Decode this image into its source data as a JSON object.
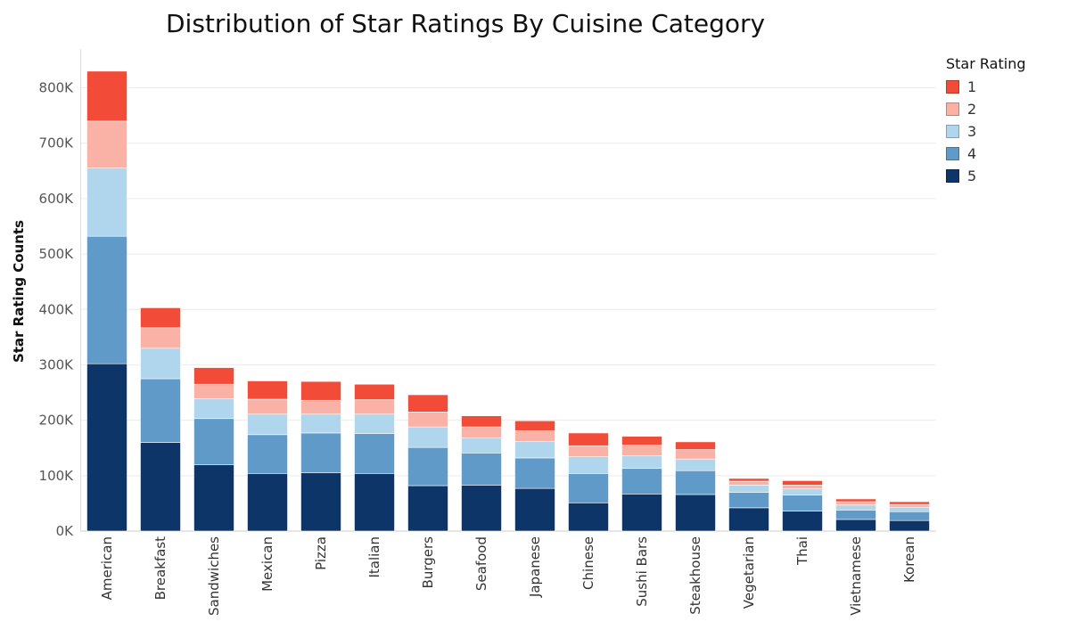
{
  "chart_data": {
    "type": "bar",
    "stacked": true,
    "title": "Distribution of Star Ratings By Cuisine Category",
    "xlabel": "",
    "ylabel": "Star Rating Counts",
    "ylim": [
      0,
      870000
    ],
    "yticks": [
      0,
      100000,
      200000,
      300000,
      400000,
      500000,
      600000,
      700000,
      800000
    ],
    "ytick_labels": [
      "0K",
      "100K",
      "200K",
      "300K",
      "400K",
      "500K",
      "600K",
      "700K",
      "800K"
    ],
    "grid": true,
    "legend_title": "Star Rating",
    "legend_position": "right",
    "categories": [
      "American",
      "Breakfast",
      "Sandwiches",
      "Mexican",
      "Pizza",
      "Italian",
      "Burgers",
      "Seafood",
      "Japanese",
      "Chinese",
      "Sushi Bars",
      "Steakhouse",
      "Vegetarian",
      "Thai",
      "Vietnamese",
      "Korean"
    ],
    "series": [
      {
        "name": "5",
        "color": "#0e3567",
        "values": [
          302000,
          160000,
          120000,
          104000,
          105000,
          104000,
          82000,
          83000,
          77000,
          51000,
          67000,
          66000,
          42000,
          36000,
          21000,
          19000
        ]
      },
      {
        "name": "4",
        "color": "#5f9ac9",
        "values": [
          230000,
          115000,
          83000,
          70000,
          72000,
          72000,
          69000,
          58000,
          55000,
          53000,
          46000,
          43000,
          28000,
          29000,
          17000,
          16000
        ]
      },
      {
        "name": "3",
        "color": "#b0d6ee",
        "values": [
          123000,
          55000,
          36000,
          37000,
          34000,
          35000,
          37000,
          27000,
          30000,
          30000,
          23000,
          21000,
          13000,
          11000,
          9000,
          8000
        ]
      },
      {
        "name": "2",
        "color": "#fbb2a6",
        "values": [
          85000,
          37000,
          26000,
          27000,
          25000,
          26000,
          27000,
          20000,
          19000,
          20000,
          19000,
          17000,
          7000,
          7000,
          6000,
          5000
        ]
      },
      {
        "name": "1",
        "color": "#f24c38",
        "values": [
          90000,
          36000,
          30000,
          33000,
          34000,
          28000,
          31000,
          20000,
          18000,
          23000,
          16000,
          14000,
          5000,
          8000,
          5000,
          5000
        ]
      }
    ],
    "legend_items": [
      {
        "label": "1",
        "color": "#f24c38"
      },
      {
        "label": "2",
        "color": "#fbb2a6"
      },
      {
        "label": "3",
        "color": "#b0d6ee"
      },
      {
        "label": "4",
        "color": "#5f9ac9"
      },
      {
        "label": "5",
        "color": "#0e3567"
      }
    ]
  }
}
